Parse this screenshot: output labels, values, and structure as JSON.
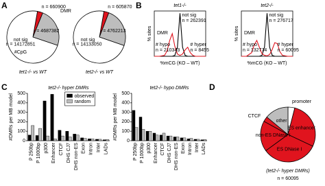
{
  "chart_data": [
    {
      "type": "pie",
      "panel": "A",
      "caption": "tet1-/- vs WT",
      "annotations": [
        "DMR",
        "not sig",
        "#CpG"
      ],
      "values": [
        660900,
        4687382,
        14172851
      ],
      "value_labels": [
        "n = 660900",
        "n = 4687382",
        "n = 14172851"
      ],
      "colors": [
        "#e0141e",
        "#bdbdbd",
        "#ffffff"
      ]
    },
    {
      "type": "pie",
      "caption": "tet2-/- vs WT",
      "annotations": [
        "not sig"
      ],
      "values": [
        605870,
        4762213,
        14133050
      ],
      "value_labels": [
        "n = 605870",
        "n = 4762213",
        "n = 14133050"
      ],
      "colors": [
        "#e0141e",
        "#bdbdbd",
        "#ffffff"
      ]
    },
    {
      "type": "line",
      "panel": "B",
      "title": "tet1-/-",
      "xlabel": "%mCG (KO – WT)",
      "ylabel": "% sites",
      "x": [
        -100,
        -80,
        -60,
        -50,
        -40,
        -30,
        -20,
        -10,
        0,
        10,
        20,
        30,
        40,
        50,
        60,
        80,
        100
      ],
      "xlim": [
        -100,
        100
      ],
      "ylim": [
        0,
        100
      ],
      "series": [
        {
          "name": "not sig",
          "color": "#000000",
          "values": [
            0,
            0,
            0,
            0,
            0,
            0,
            2,
            20,
            95,
            20,
            2,
            0,
            0,
            0,
            0,
            0,
            0
          ]
        },
        {
          "name": "DMR",
          "color": "#e0141e",
          "values": [
            0,
            0,
            2,
            12,
            35,
            50,
            22,
            5,
            2,
            5,
            14,
            20,
            8,
            2,
            0,
            0,
            0
          ]
        }
      ],
      "annotations": [
        "n = 262391",
        "# hypo",
        "n = 210343",
        "# hyper",
        "n = 8455"
      ]
    },
    {
      "type": "line",
      "title": "tet2-/-",
      "xlabel": "%mCG (KO – WT)",
      "ylabel": "% sites",
      "x": [
        -100,
        -80,
        -60,
        -50,
        -40,
        -30,
        -20,
        -10,
        0,
        10,
        20,
        30,
        40,
        50,
        60,
        80,
        100
      ],
      "xlim": [
        -100,
        100
      ],
      "ylim": [
        0,
        100
      ],
      "series": [
        {
          "name": "not sig",
          "color": "#000000",
          "values": [
            0,
            0,
            0,
            0,
            0,
            0,
            2,
            20,
            95,
            20,
            2,
            0,
            0,
            0,
            0,
            0,
            0
          ]
        },
        {
          "name": "DMR",
          "color": "#e0141e",
          "values": [
            0,
            0,
            8,
            25,
            35,
            20,
            6,
            2,
            1,
            4,
            15,
            30,
            28,
            10,
            2,
            0,
            0
          ]
        }
      ],
      "annotations": [
        "n = 276717",
        "# hypo",
        "n = 132774",
        "# hyper",
        "n = 60095"
      ]
    },
    {
      "type": "bar",
      "panel": "C",
      "title": "tet2-/- hyper DMRs",
      "ylabel": "#DMRs per MB model",
      "legend": true,
      "categories": [
        "P 250bp",
        "P 1000bp",
        "p300",
        "Enhancer",
        "CTCF",
        "DHS CJ7",
        "DHS non-ES",
        "Exon",
        "Intron",
        "Inter",
        "LADs"
      ],
      "ylim": [
        0,
        500
      ],
      "yticks": [
        0,
        100,
        200,
        300,
        400,
        500
      ],
      "series": [
        {
          "name": "observed",
          "color": "#000000",
          "values": [
            60,
            55,
            420,
            490,
            110,
            100,
            70,
            30,
            20,
            15,
            10
          ]
        },
        {
          "name": "random",
          "color": "#bdbdbd",
          "values": [
            160,
            130,
            50,
            20,
            50,
            40,
            60,
            25,
            20,
            15,
            12
          ]
        }
      ]
    },
    {
      "type": "bar",
      "title": "tet2-/- hypo DMRs",
      "ylabel": "#DMRs per MB model",
      "legend": false,
      "categories": [
        "P 250bp",
        "P 1000bp",
        "p300",
        "Enhancer",
        "CTCF",
        "DHS CJ7",
        "DHS non-ES",
        "Exon",
        "Intron",
        "Inter",
        "LADs"
      ],
      "ylim": [
        0,
        500
      ],
      "yticks": [
        0,
        100,
        200,
        300,
        400,
        500
      ],
      "series": [
        {
          "name": "observed",
          "color": "#000000",
          "values": [
            320,
            250,
            100,
            80,
            60,
            50,
            40,
            30,
            20,
            15,
            10
          ]
        },
        {
          "name": "random",
          "color": "#bdbdbd",
          "values": [
            140,
            120,
            100,
            60,
            80,
            50,
            40,
            30,
            25,
            15,
            12
          ]
        }
      ]
    },
    {
      "type": "pie",
      "panel": "D",
      "caption": "(tet2-/- hyper DMRs)",
      "subcaption": "n = 60095",
      "categories": [
        "promoter",
        "ES enhancer",
        "ES DNase I",
        "non-ES DNase I",
        "CTCF",
        "other"
      ],
      "values": [
        4,
        28,
        33,
        18,
        3,
        14
      ],
      "colors": [
        "#ffffff",
        "#e0141e",
        "#e0141e",
        "#e0141e",
        "#e0141e",
        "#bdbdbd"
      ]
    }
  ]
}
